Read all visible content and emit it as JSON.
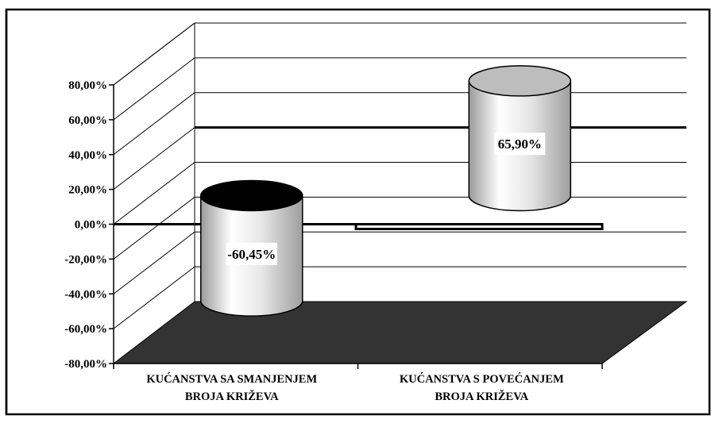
{
  "chart_data": {
    "type": "bar",
    "style": "3d-cylinder",
    "categories": [
      [
        "KUĆANSTVA SA SMANJENJEM",
        "BROJA KRIŽEVA"
      ],
      [
        "KUĆANSTVA S POVEĆANJEM",
        "BROJA KRIŽEVA"
      ]
    ],
    "values": [
      -60.45,
      65.9
    ],
    "data_labels": [
      "-60,45%",
      "65,90%"
    ],
    "ylim": [
      -80,
      80
    ],
    "yticks": [
      80,
      60,
      40,
      20,
      0,
      -20,
      -40,
      -60,
      -80
    ],
    "ytick_labels": [
      "80,00%",
      "60,00%",
      "40,00%",
      "20,00%",
      "0,00%",
      "-20,00%",
      "-40,00%",
      "-60,00%",
      "-80,00%"
    ],
    "grid": true,
    "legend": "none",
    "title": "",
    "xlabel": "",
    "ylabel": "",
    "colors": {
      "floor": "#333333",
      "cylinder_top_negative": "#000000",
      "cylinder_top_positive": "#bdbdbd",
      "cylinder_body": "#e6e6e6",
      "grid": "#000000",
      "label_box": "#ffffff"
    }
  }
}
